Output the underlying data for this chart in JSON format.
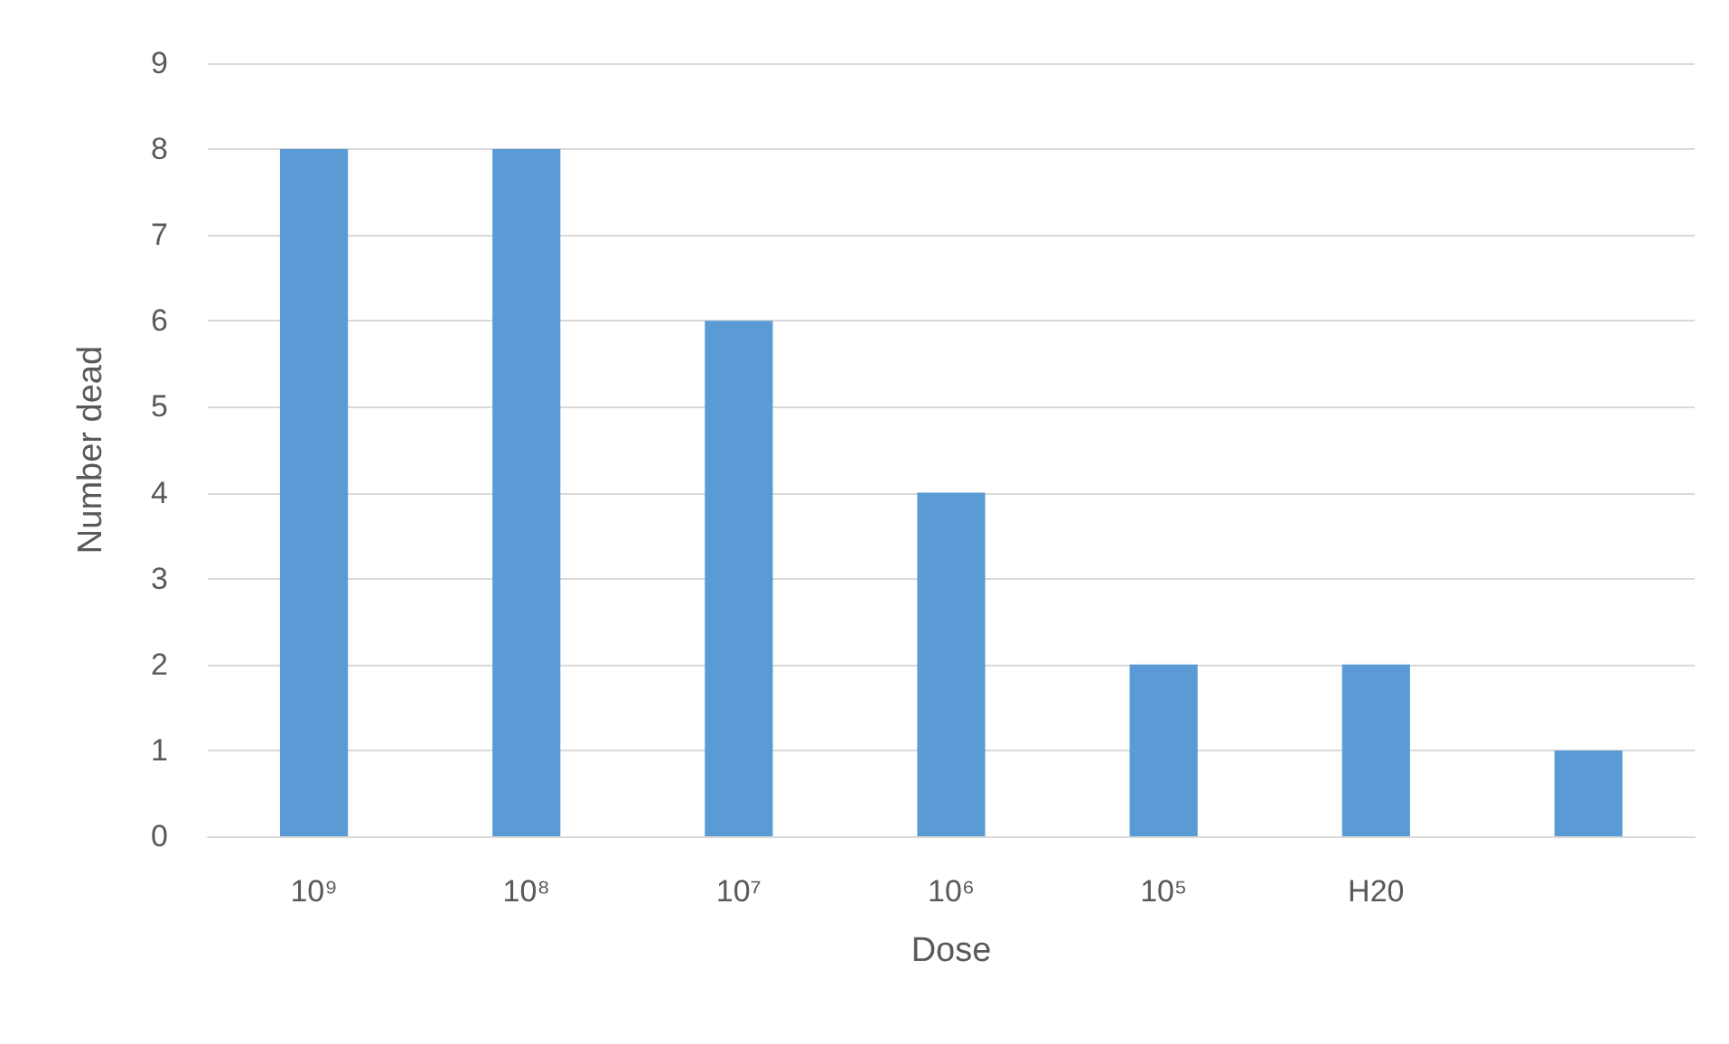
{
  "chart_data": {
    "type": "bar",
    "xlabel": "Dose",
    "ylabel": "Number dead",
    "categories": [
      "10⁹",
      "10⁸",
      "10⁷",
      "10⁶",
      "10⁵",
      "H20",
      null
    ],
    "values": [
      8,
      8,
      6,
      4,
      2,
      2,
      1
    ],
    "color": "#5b9bd5",
    "ylim": [
      0,
      9
    ],
    "yticks": [
      0,
      1,
      2,
      3,
      4,
      5,
      6,
      7,
      8,
      9
    ],
    "grid": "y"
  }
}
